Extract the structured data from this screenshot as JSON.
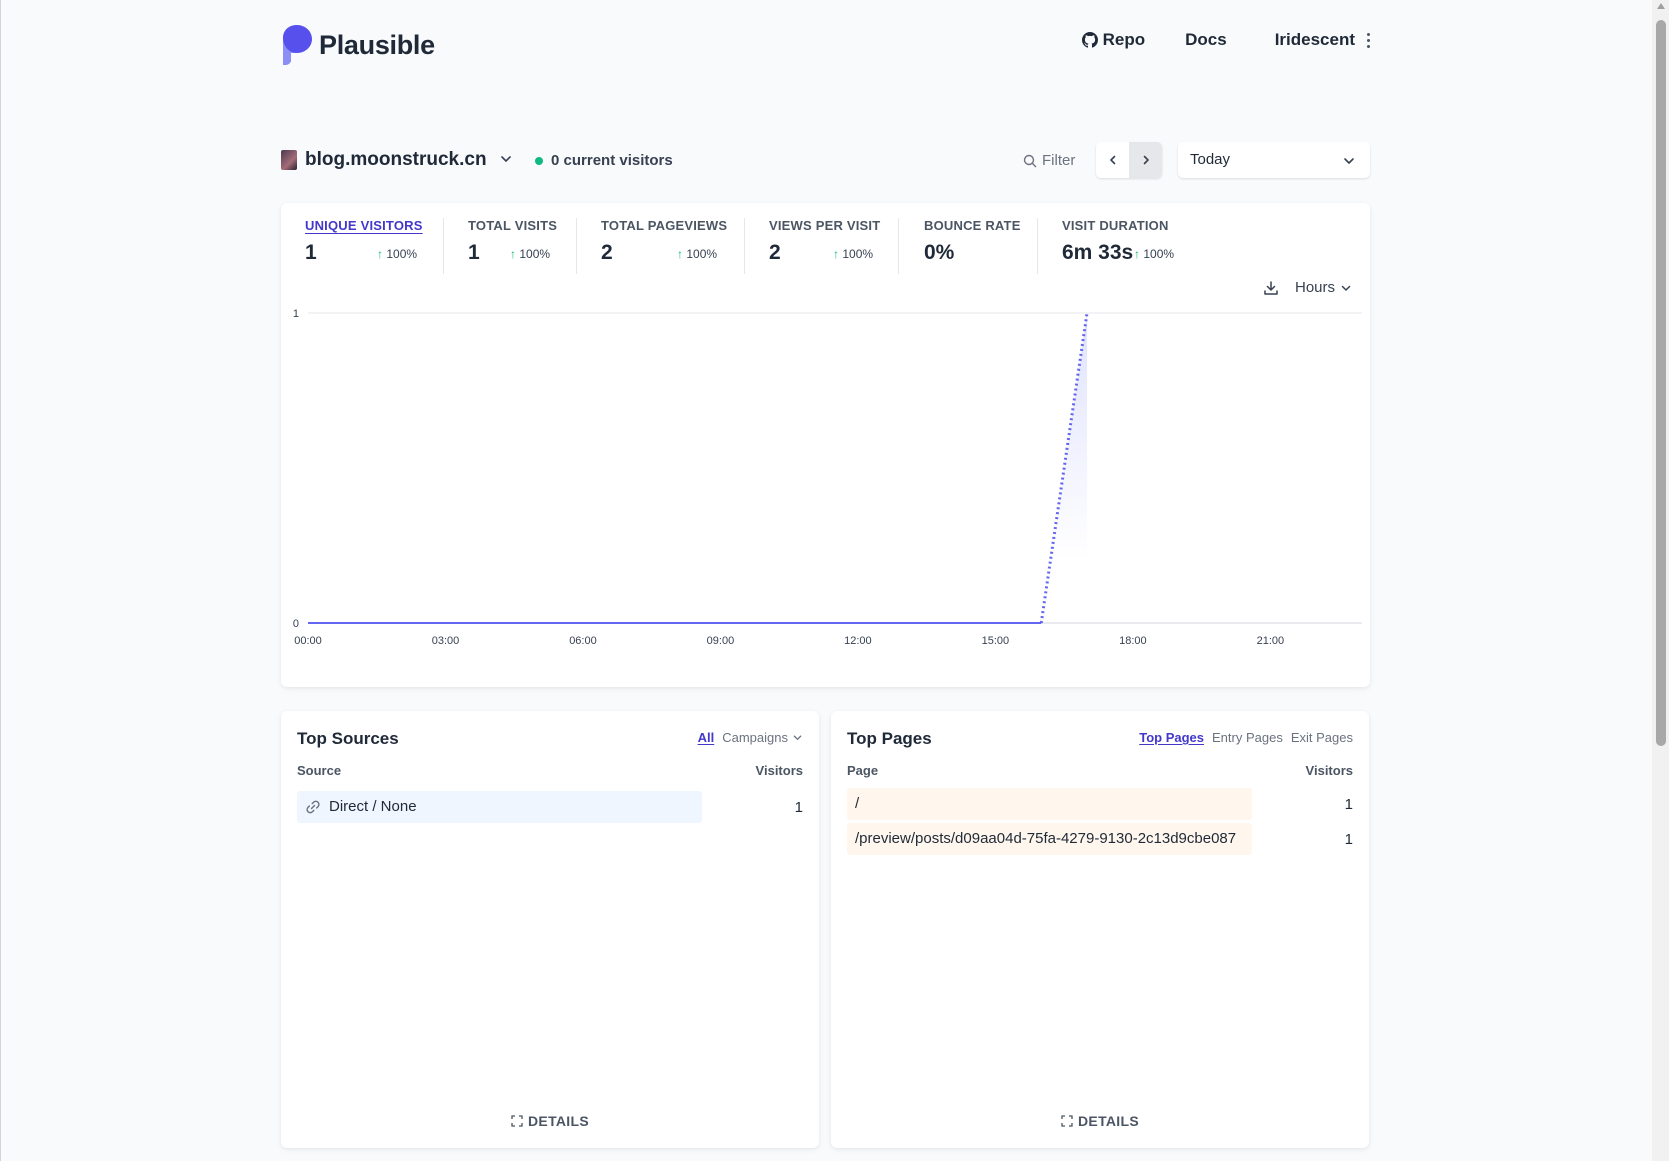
{
  "header": {
    "brand": "Plausible",
    "nav": {
      "repo_label": "Repo",
      "docs_label": "Docs",
      "user_label": "Iridescent"
    }
  },
  "site_bar": {
    "site_name": "blog.moonstruck.cn",
    "current_visitors": "0 current visitors",
    "filter_label": "Filter",
    "period": "Today"
  },
  "metrics": [
    {
      "label": "UNIQUE VISITORS",
      "value": "1",
      "change": "100%",
      "active": true
    },
    {
      "label": "TOTAL VISITS",
      "value": "1",
      "change": "100%"
    },
    {
      "label": "TOTAL PAGEVIEWS",
      "value": "2",
      "change": "100%"
    },
    {
      "label": "VIEWS PER VISIT",
      "value": "2",
      "change": "100%"
    },
    {
      "label": "BOUNCE RATE",
      "value": "0%",
      "change": ""
    },
    {
      "label": "VISIT DURATION",
      "value": "6m 33s",
      "change": "100%"
    }
  ],
  "chart_controls": {
    "interval_label": "Hours"
  },
  "chart_data": {
    "type": "line",
    "title": "",
    "xlabel": "",
    "ylabel": "",
    "x": [
      "00:00",
      "01:00",
      "02:00",
      "03:00",
      "04:00",
      "05:00",
      "06:00",
      "07:00",
      "08:00",
      "09:00",
      "10:00",
      "11:00",
      "12:00",
      "13:00",
      "14:00",
      "15:00",
      "16:00",
      "17:00"
    ],
    "x_ticks": [
      "00:00",
      "03:00",
      "06:00",
      "09:00",
      "12:00",
      "15:00",
      "18:00",
      "21:00"
    ],
    "y_ticks": [
      "0",
      "1"
    ],
    "ylim": [
      0,
      1
    ],
    "series": [
      {
        "values": [
          0,
          0,
          0,
          0,
          0,
          0,
          0,
          0,
          0,
          0,
          0,
          0,
          0,
          0,
          0,
          0,
          0,
          1
        ]
      }
    ],
    "x_range_hours": [
      0,
      23
    ],
    "grid": true,
    "accent_color": "#6366f1"
  },
  "top_sources": {
    "title": "Top Sources",
    "tabs": [
      "All",
      "Campaigns"
    ],
    "col_left": "Source",
    "col_right": "Visitors",
    "rows": [
      {
        "label": "Direct / None",
        "value": "1",
        "fraction": 0.8,
        "icon": "link-icon"
      }
    ],
    "details_label": "DETAILS"
  },
  "top_pages": {
    "title": "Top Pages",
    "tabs": [
      "Top Pages",
      "Entry Pages",
      "Exit Pages"
    ],
    "col_left": "Page",
    "col_right": "Visitors",
    "rows": [
      {
        "label": "/",
        "value": "1",
        "fraction": 0.8
      },
      {
        "label": "/preview/posts/d09aa04d-75fa-4279-9130-2c13d9cbe087",
        "value": "1",
        "fraction": 0.8
      }
    ],
    "details_label": "DETAILS"
  }
}
